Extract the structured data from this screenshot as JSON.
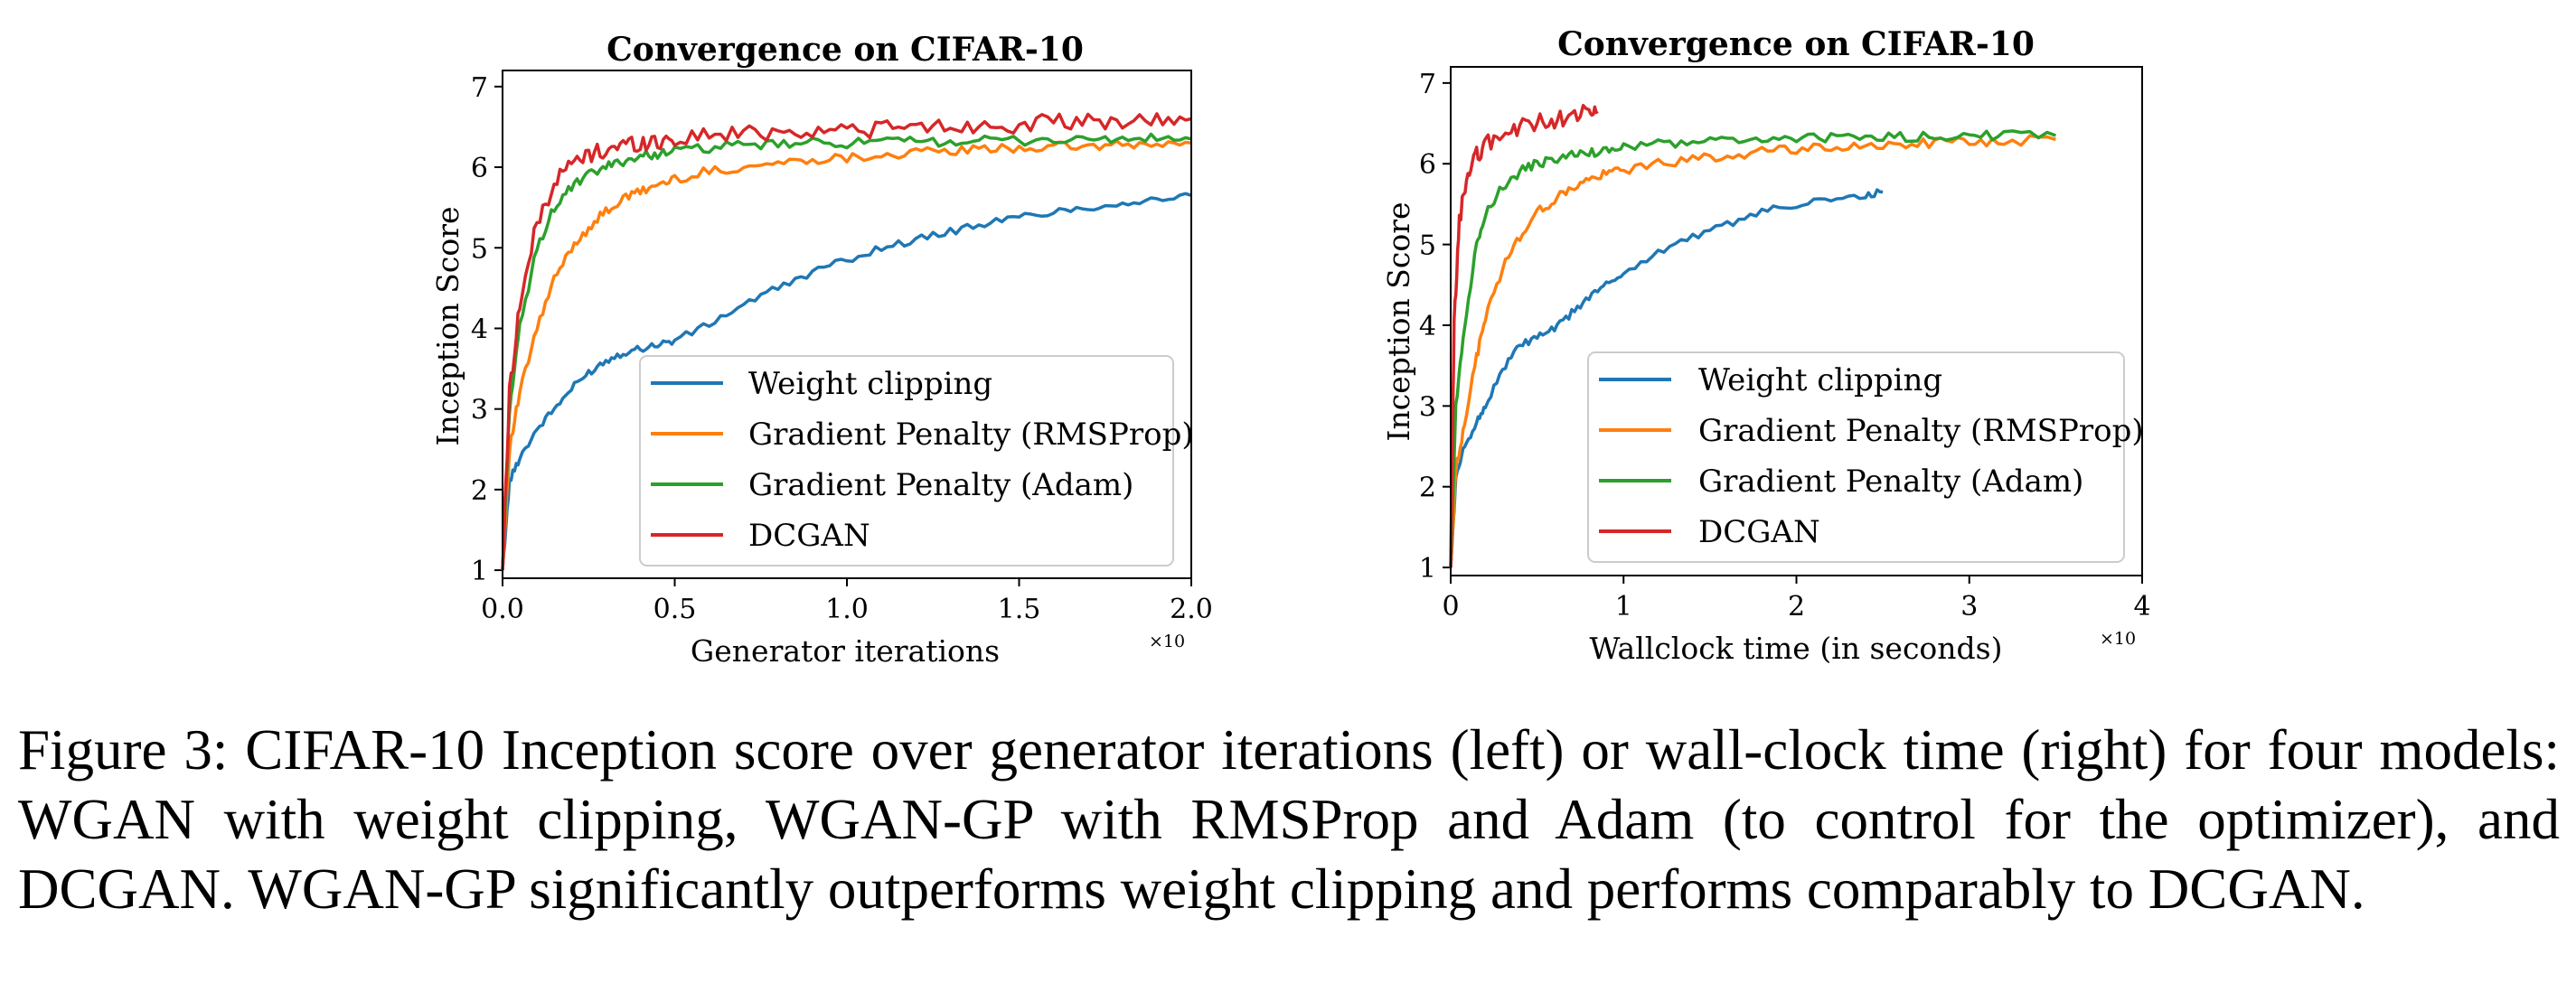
{
  "colors": {
    "weight_clipping": "#1f77b4",
    "gp_rmsprop": "#ff7f0e",
    "gp_adam": "#2ca02c",
    "dcgan": "#d62728"
  },
  "caption": "Figure 3: CIFAR-10 Inception score over generator iterations (left) or wall-clock time (right) for four models: WGAN with weight clipping, WGAN-GP with RMSProp and Adam (to control for the optimizer), and DCGAN. WGAN-GP significantly outperforms weight clipping and performs comparably to DCGAN.",
  "chart_data": [
    {
      "type": "line",
      "title": "Convergence on CIFAR-10",
      "xlabel": "Generator iterations",
      "ylabel": "Inception Score",
      "x_offset_label": "×10",
      "xlim": [
        0,
        2.0
      ],
      "ylim": [
        0.9,
        7.2
      ],
      "xticks": [
        "0.0",
        "0.5",
        "1.0",
        "1.5",
        "2.0"
      ],
      "yticks": [
        "1",
        "2",
        "3",
        "4",
        "5",
        "6",
        "7"
      ],
      "grid": false,
      "legend_position": "lower-right",
      "series": [
        {
          "name": "Weight clipping",
          "color": "#1f77b4",
          "x": [
            0,
            0.02,
            0.05,
            0.1,
            0.15,
            0.2,
            0.25,
            0.3,
            0.35,
            0.4,
            0.45,
            0.5,
            0.6,
            0.7,
            0.8,
            0.9,
            1.0,
            1.1,
            1.2,
            1.3,
            1.4,
            1.5,
            1.6,
            1.7,
            1.8,
            1.9,
            2.0
          ],
          "y": [
            1.0,
            2.1,
            2.4,
            2.75,
            3.0,
            3.25,
            3.45,
            3.6,
            3.7,
            3.75,
            3.8,
            3.85,
            4.05,
            4.3,
            4.5,
            4.7,
            4.85,
            5.0,
            5.1,
            5.2,
            5.3,
            5.38,
            5.45,
            5.5,
            5.55,
            5.6,
            5.65
          ]
        },
        {
          "name": "Gradient Penalty (RMSProp)",
          "color": "#ff7f0e",
          "x": [
            0,
            0.02,
            0.05,
            0.1,
            0.15,
            0.2,
            0.25,
            0.3,
            0.35,
            0.4,
            0.45,
            0.5,
            0.6,
            0.7,
            0.8,
            0.9,
            1.0,
            1.1,
            1.2,
            1.3,
            1.4,
            1.5,
            1.6,
            1.7,
            1.8,
            1.9,
            2.0
          ],
          "y": [
            1.0,
            2.5,
            3.2,
            4.0,
            4.6,
            5.0,
            5.25,
            5.45,
            5.6,
            5.7,
            5.78,
            5.85,
            5.95,
            6.0,
            6.05,
            6.1,
            6.12,
            6.15,
            6.18,
            6.2,
            6.22,
            6.24,
            6.25,
            6.26,
            6.27,
            6.28,
            6.3
          ]
        },
        {
          "name": "Gradient Penalty (Adam)",
          "color": "#2ca02c",
          "x": [
            0,
            0.02,
            0.05,
            0.1,
            0.15,
            0.2,
            0.25,
            0.3,
            0.35,
            0.4,
            0.45,
            0.5,
            0.6,
            0.7,
            0.8,
            0.9,
            1.0,
            1.1,
            1.2,
            1.3,
            1.4,
            1.5,
            1.6,
            1.7,
            1.8,
            1.9,
            2.0
          ],
          "y": [
            1.0,
            3.0,
            4.0,
            5.0,
            5.5,
            5.75,
            5.9,
            6.0,
            6.08,
            6.13,
            6.17,
            6.2,
            6.24,
            6.27,
            6.28,
            6.3,
            6.3,
            6.31,
            6.32,
            6.32,
            6.33,
            6.33,
            6.34,
            6.34,
            6.35,
            6.35,
            6.35
          ]
        },
        {
          "name": "DCGAN",
          "color": "#d62728",
          "x": [
            0,
            0.02,
            0.05,
            0.1,
            0.15,
            0.2,
            0.25,
            0.3,
            0.35,
            0.4,
            0.45,
            0.5,
            0.6,
            0.7,
            0.8,
            0.9,
            1.0,
            1.1,
            1.2,
            1.3,
            1.4,
            1.5,
            1.6,
            1.7,
            1.8,
            1.9,
            2.0
          ],
          "y": [
            1.0,
            3.2,
            4.3,
            5.3,
            5.8,
            6.05,
            6.15,
            6.22,
            6.28,
            6.3,
            6.32,
            6.35,
            6.4,
            6.42,
            6.45,
            6.45,
            6.47,
            6.48,
            6.5,
            6.5,
            6.52,
            6.53,
            6.55,
            6.55,
            6.57,
            6.58,
            6.6
          ]
        }
      ]
    },
    {
      "type": "line",
      "title": "Convergence on CIFAR-10",
      "xlabel": "Wallclock time (in seconds)",
      "ylabel": "Inception Score",
      "x_offset_label": "×10",
      "xlim": [
        0,
        4
      ],
      "ylim": [
        0.9,
        7.2
      ],
      "xticks": [
        "0",
        "1",
        "2",
        "3",
        "4"
      ],
      "yticks": [
        "1",
        "2",
        "3",
        "4",
        "5",
        "6",
        "7"
      ],
      "grid": false,
      "legend_position": "lower-right",
      "series": [
        {
          "name": "Weight clipping",
          "color": "#1f77b4",
          "x": [
            0,
            0.03,
            0.08,
            0.15,
            0.2,
            0.3,
            0.4,
            0.5,
            0.6,
            0.7,
            0.8,
            0.9,
            1.0,
            1.2,
            1.4,
            1.6,
            1.8,
            2.0,
            2.2,
            2.4,
            2.5
          ],
          "y": [
            1.0,
            2.1,
            2.5,
            2.8,
            3.0,
            3.45,
            3.75,
            3.85,
            3.95,
            4.15,
            4.35,
            4.5,
            4.65,
            4.9,
            5.1,
            5.25,
            5.4,
            5.5,
            5.55,
            5.6,
            5.65
          ]
        },
        {
          "name": "Gradient Penalty (RMSProp)",
          "color": "#ff7f0e",
          "x": [
            0,
            0.03,
            0.08,
            0.15,
            0.2,
            0.3,
            0.4,
            0.5,
            0.6,
            0.7,
            0.8,
            0.9,
            1.0,
            1.2,
            1.4,
            1.6,
            1.8,
            2.0,
            2.2,
            2.4,
            2.6,
            2.8,
            3.0,
            3.2,
            3.5
          ],
          "y": [
            1.0,
            2.2,
            2.8,
            3.6,
            4.1,
            4.7,
            5.1,
            5.4,
            5.55,
            5.7,
            5.8,
            5.87,
            5.93,
            6.0,
            6.05,
            6.1,
            6.15,
            6.18,
            6.2,
            6.22,
            6.24,
            6.26,
            6.27,
            6.28,
            6.3
          ]
        },
        {
          "name": "Gradient Penalty (Adam)",
          "color": "#2ca02c",
          "x": [
            0,
            0.03,
            0.08,
            0.15,
            0.2,
            0.3,
            0.4,
            0.5,
            0.6,
            0.7,
            0.8,
            0.9,
            1.0,
            1.2,
            1.4,
            1.6,
            1.8,
            2.0,
            2.2,
            2.4,
            2.6,
            2.8,
            3.0,
            3.2,
            3.5
          ],
          "y": [
            1.0,
            3.0,
            4.0,
            5.0,
            5.4,
            5.7,
            5.9,
            6.0,
            6.05,
            6.1,
            6.13,
            6.17,
            6.2,
            6.24,
            6.27,
            6.29,
            6.3,
            6.32,
            6.32,
            6.33,
            6.33,
            6.34,
            6.34,
            6.35,
            6.35
          ]
        },
        {
          "name": "DCGAN",
          "color": "#d62728",
          "x": [
            0,
            0.02,
            0.05,
            0.1,
            0.15,
            0.2,
            0.3,
            0.4,
            0.5,
            0.6,
            0.7,
            0.8,
            0.85
          ],
          "y": [
            1.0,
            4.0,
            5.3,
            5.9,
            6.1,
            6.25,
            6.35,
            6.45,
            6.5,
            6.55,
            6.6,
            6.62,
            6.65
          ]
        }
      ]
    }
  ]
}
